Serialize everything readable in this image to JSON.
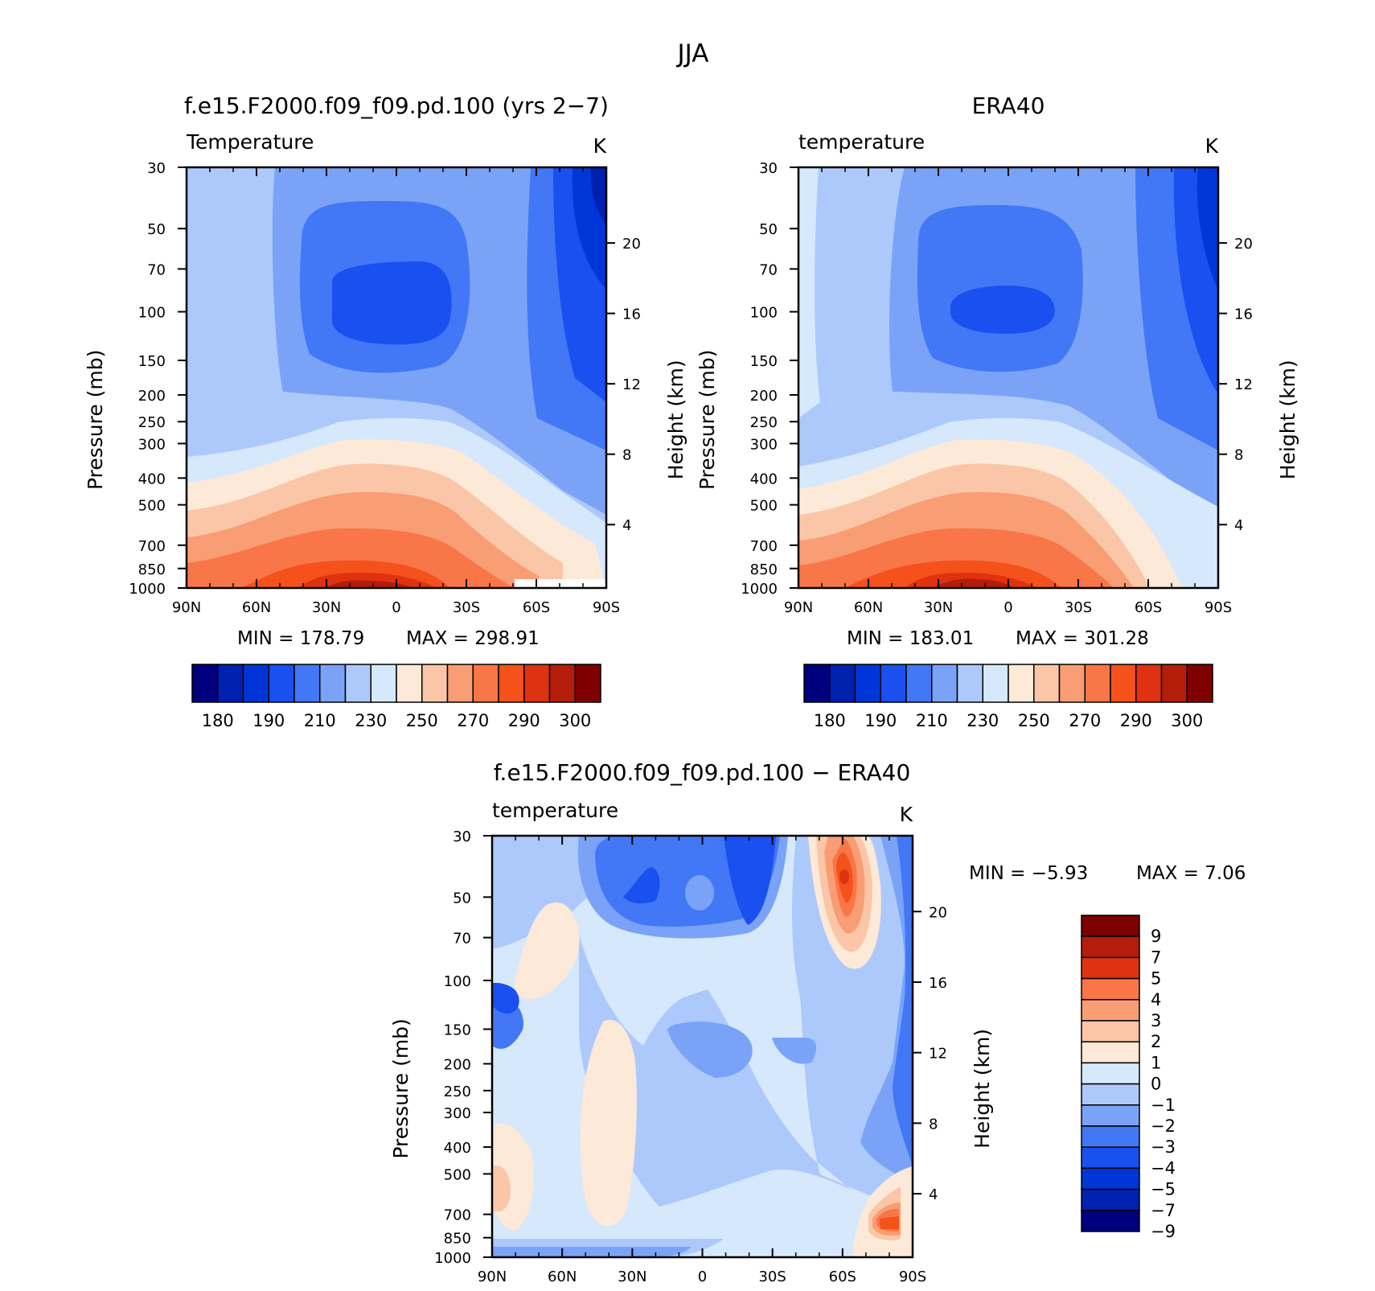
{
  "figure": {
    "title": "JJA",
    "colors": {
      "full": [
        "#00007f",
        "#0020b0",
        "#0036d8",
        "#1a4ff0",
        "#4278f5",
        "#7aa3f8",
        "#adc9fb",
        "#d6e8fc",
        "#fde9d8",
        "#fbc6a7",
        "#f99d74",
        "#f97648",
        "#f4511b",
        "#de3210",
        "#b51d0b",
        "#7f0000"
      ],
      "diff": [
        "#7f0000",
        "#b51d0b",
        "#de3210",
        "#f97648",
        "#f99d74",
        "#fbc6a7",
        "#fde9d8",
        "#d6e8fc",
        "#adc9fb",
        "#7aa3f8",
        "#4278f5",
        "#1a4ff0",
        "#0036d8",
        "#0020b0",
        "#00007f"
      ]
    }
  },
  "chart_data": [
    {
      "id": "model",
      "type": "heatmap",
      "title": "f.e15.F2000.f09_f09.pd.100 (yrs 2−7)",
      "subtitle": "Temperature",
      "units": "K",
      "ylabel": "Pressure (mb)",
      "ylabel_right": "Height (km)",
      "x_ticks": [
        "90N",
        "60N",
        "30N",
        "0",
        "30S",
        "60S",
        "90S"
      ],
      "y_ticks": [
        "30",
        "50",
        "70",
        "100",
        "150",
        "200",
        "250",
        "300",
        "400",
        "500",
        "700",
        "850",
        "1000"
      ],
      "y_ticks_right": [
        "20",
        "16",
        "12",
        "8",
        "4"
      ],
      "y_log": true,
      "min_label": "MIN = 178.79",
      "max_label": "MAX = 298.91",
      "min": 178.79,
      "max": 298.91,
      "colorbar_labels": [
        "180",
        "190",
        "210",
        "230",
        "250",
        "270",
        "290",
        "300"
      ]
    },
    {
      "id": "obs",
      "type": "heatmap",
      "title": "ERA40",
      "subtitle": "temperature",
      "units": "K",
      "ylabel": "Pressure (mb)",
      "ylabel_right": "Height (km)",
      "x_ticks": [
        "90N",
        "60N",
        "30N",
        "0",
        "30S",
        "60S",
        "90S"
      ],
      "y_ticks": [
        "30",
        "50",
        "70",
        "100",
        "150",
        "200",
        "250",
        "300",
        "400",
        "500",
        "700",
        "850",
        "1000"
      ],
      "y_ticks_right": [
        "20",
        "16",
        "12",
        "8",
        "4"
      ],
      "y_log": true,
      "min_label": "MIN = 183.01",
      "max_label": "MAX = 301.28",
      "min": 183.01,
      "max": 301.28,
      "colorbar_labels": [
        "180",
        "190",
        "210",
        "230",
        "250",
        "270",
        "290",
        "300"
      ]
    },
    {
      "id": "diff",
      "type": "heatmap",
      "title": "f.e15.F2000.f09_f09.pd.100 − ERA40",
      "subtitle": "temperature",
      "units": "K",
      "ylabel": "Pressure (mb)",
      "ylabel_right": "Height (km)",
      "x_ticks": [
        "90N",
        "60N",
        "30N",
        "0",
        "30S",
        "60S",
        "90S"
      ],
      "y_ticks": [
        "30",
        "50",
        "70",
        "100",
        "150",
        "200",
        "250",
        "300",
        "400",
        "500",
        "700",
        "850",
        "1000"
      ],
      "y_ticks_right": [
        "20",
        "16",
        "12",
        "8",
        "4"
      ],
      "y_log": true,
      "min_label": "MIN = −5.93",
      "max_label": "MAX = 7.06",
      "min": -5.93,
      "max": 7.06,
      "colorbar_labels": [
        "9",
        "7",
        "5",
        "4",
        "3",
        "2",
        "1",
        "0",
        "−1",
        "−2",
        "−3",
        "−4",
        "−5",
        "−7",
        "−9"
      ]
    }
  ]
}
